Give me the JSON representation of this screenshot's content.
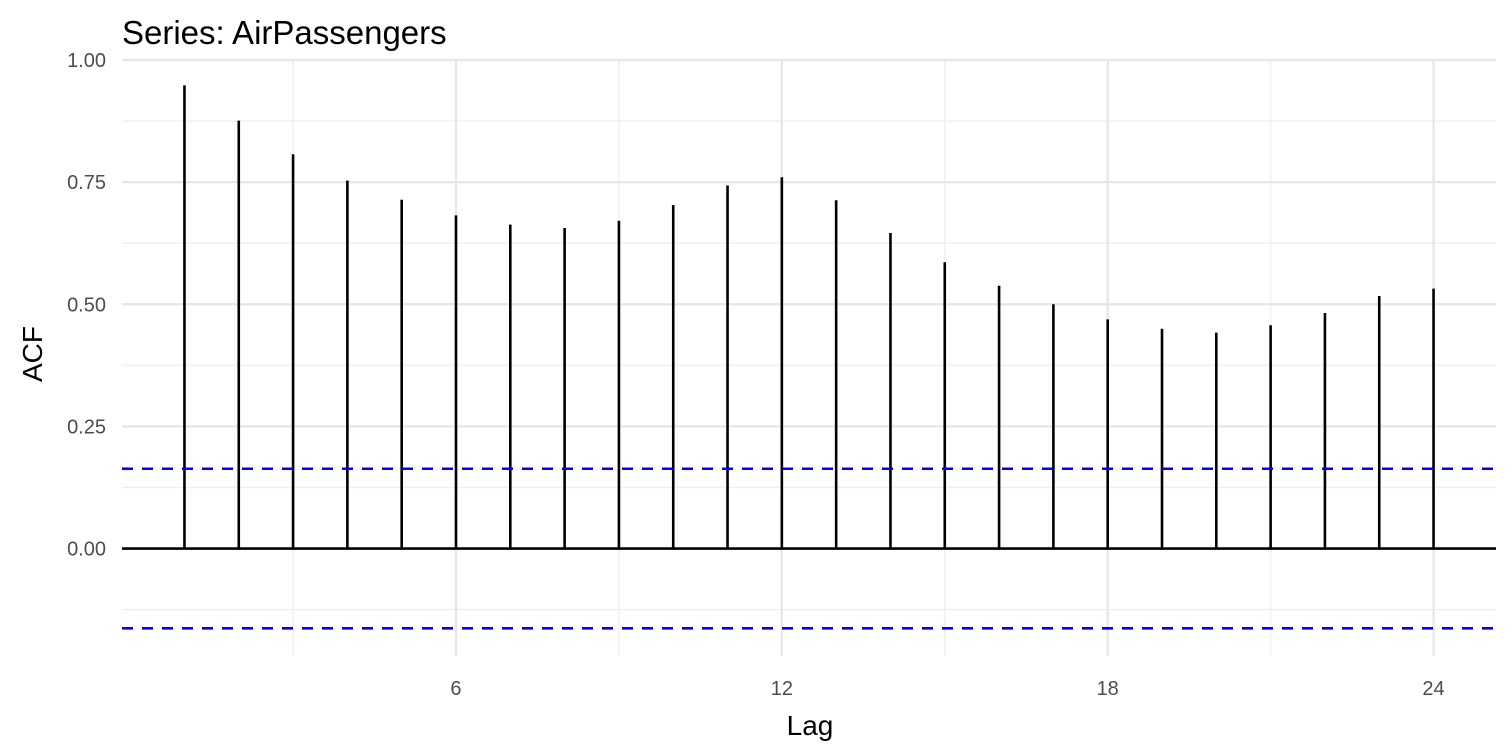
{
  "chart_data": {
    "type": "bar",
    "title": "Series: AirPassengers",
    "xlabel": "Lag",
    "ylabel": "ACF",
    "x": [
      1,
      2,
      3,
      4,
      5,
      6,
      7,
      8,
      9,
      10,
      11,
      12,
      13,
      14,
      15,
      16,
      17,
      18,
      19,
      20,
      21,
      22,
      23,
      24
    ],
    "values": [
      0.948,
      0.876,
      0.807,
      0.753,
      0.714,
      0.682,
      0.663,
      0.656,
      0.671,
      0.703,
      0.743,
      0.76,
      0.713,
      0.646,
      0.586,
      0.538,
      0.5,
      0.469,
      0.45,
      0.442,
      0.457,
      0.482,
      0.517,
      0.532
    ],
    "ci": 0.1633,
    "xlim": [
      -0.15,
      25.15
    ],
    "ylim": [
      -0.22,
      1.0
    ],
    "x_ticks": [
      6,
      12,
      18,
      24
    ],
    "y_ticks": [
      0.0,
      0.25,
      0.5,
      0.75,
      1.0
    ],
    "x_tick_labels": [
      "6",
      "12",
      "18",
      "24"
    ],
    "y_tick_labels": [
      "0.00",
      "0.25",
      "0.50",
      "0.75",
      "1.00"
    ],
    "grid": true,
    "colors": {
      "bars": "#000000",
      "ci_lines": "#0000ff",
      "zero_line": "#000000",
      "grid": "#e6e6e6"
    }
  }
}
